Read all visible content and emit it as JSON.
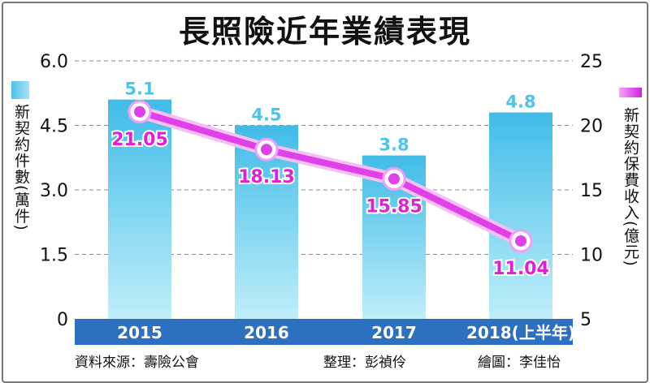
{
  "chart_data": {
    "type": "bar+line",
    "title": "長照險近年業績表現",
    "categories": [
      "2015",
      "2016",
      "2017",
      "2018(上半年)"
    ],
    "series": [
      {
        "name": "新契約件數(萬件)",
        "type": "bar",
        "axis": "left",
        "values": [
          5.1,
          4.5,
          3.8,
          4.8
        ],
        "labels": [
          "5.1",
          "4.5",
          "3.8",
          "4.8"
        ],
        "color": "#5cc8ec"
      },
      {
        "name": "新契約保費收入(億元)",
        "type": "line",
        "axis": "right",
        "values": [
          21.05,
          18.13,
          15.85,
          11.04
        ],
        "labels": [
          "21.05",
          "18.13",
          "15.85",
          "11.04"
        ],
        "color": "#e040e8"
      }
    ],
    "left_axis": {
      "label": "新契約件數(萬件)",
      "ylim": [
        0,
        6
      ],
      "ticks": [
        "0",
        "1.5",
        "3.0",
        "4.5",
        "6.0"
      ]
    },
    "right_axis": {
      "label": "新契約保費收入(億元)",
      "ylim": [
        5,
        25
      ],
      "ticks": [
        "5",
        "10",
        "15",
        "20",
        "25"
      ]
    },
    "grid": "dashed horizontal",
    "category_band_color": "#2d6fc0"
  },
  "footer": {
    "source": "資料來源：壽險公會",
    "editor": "整理：彭禎伶",
    "artist": "繪圖：李佳怡"
  }
}
